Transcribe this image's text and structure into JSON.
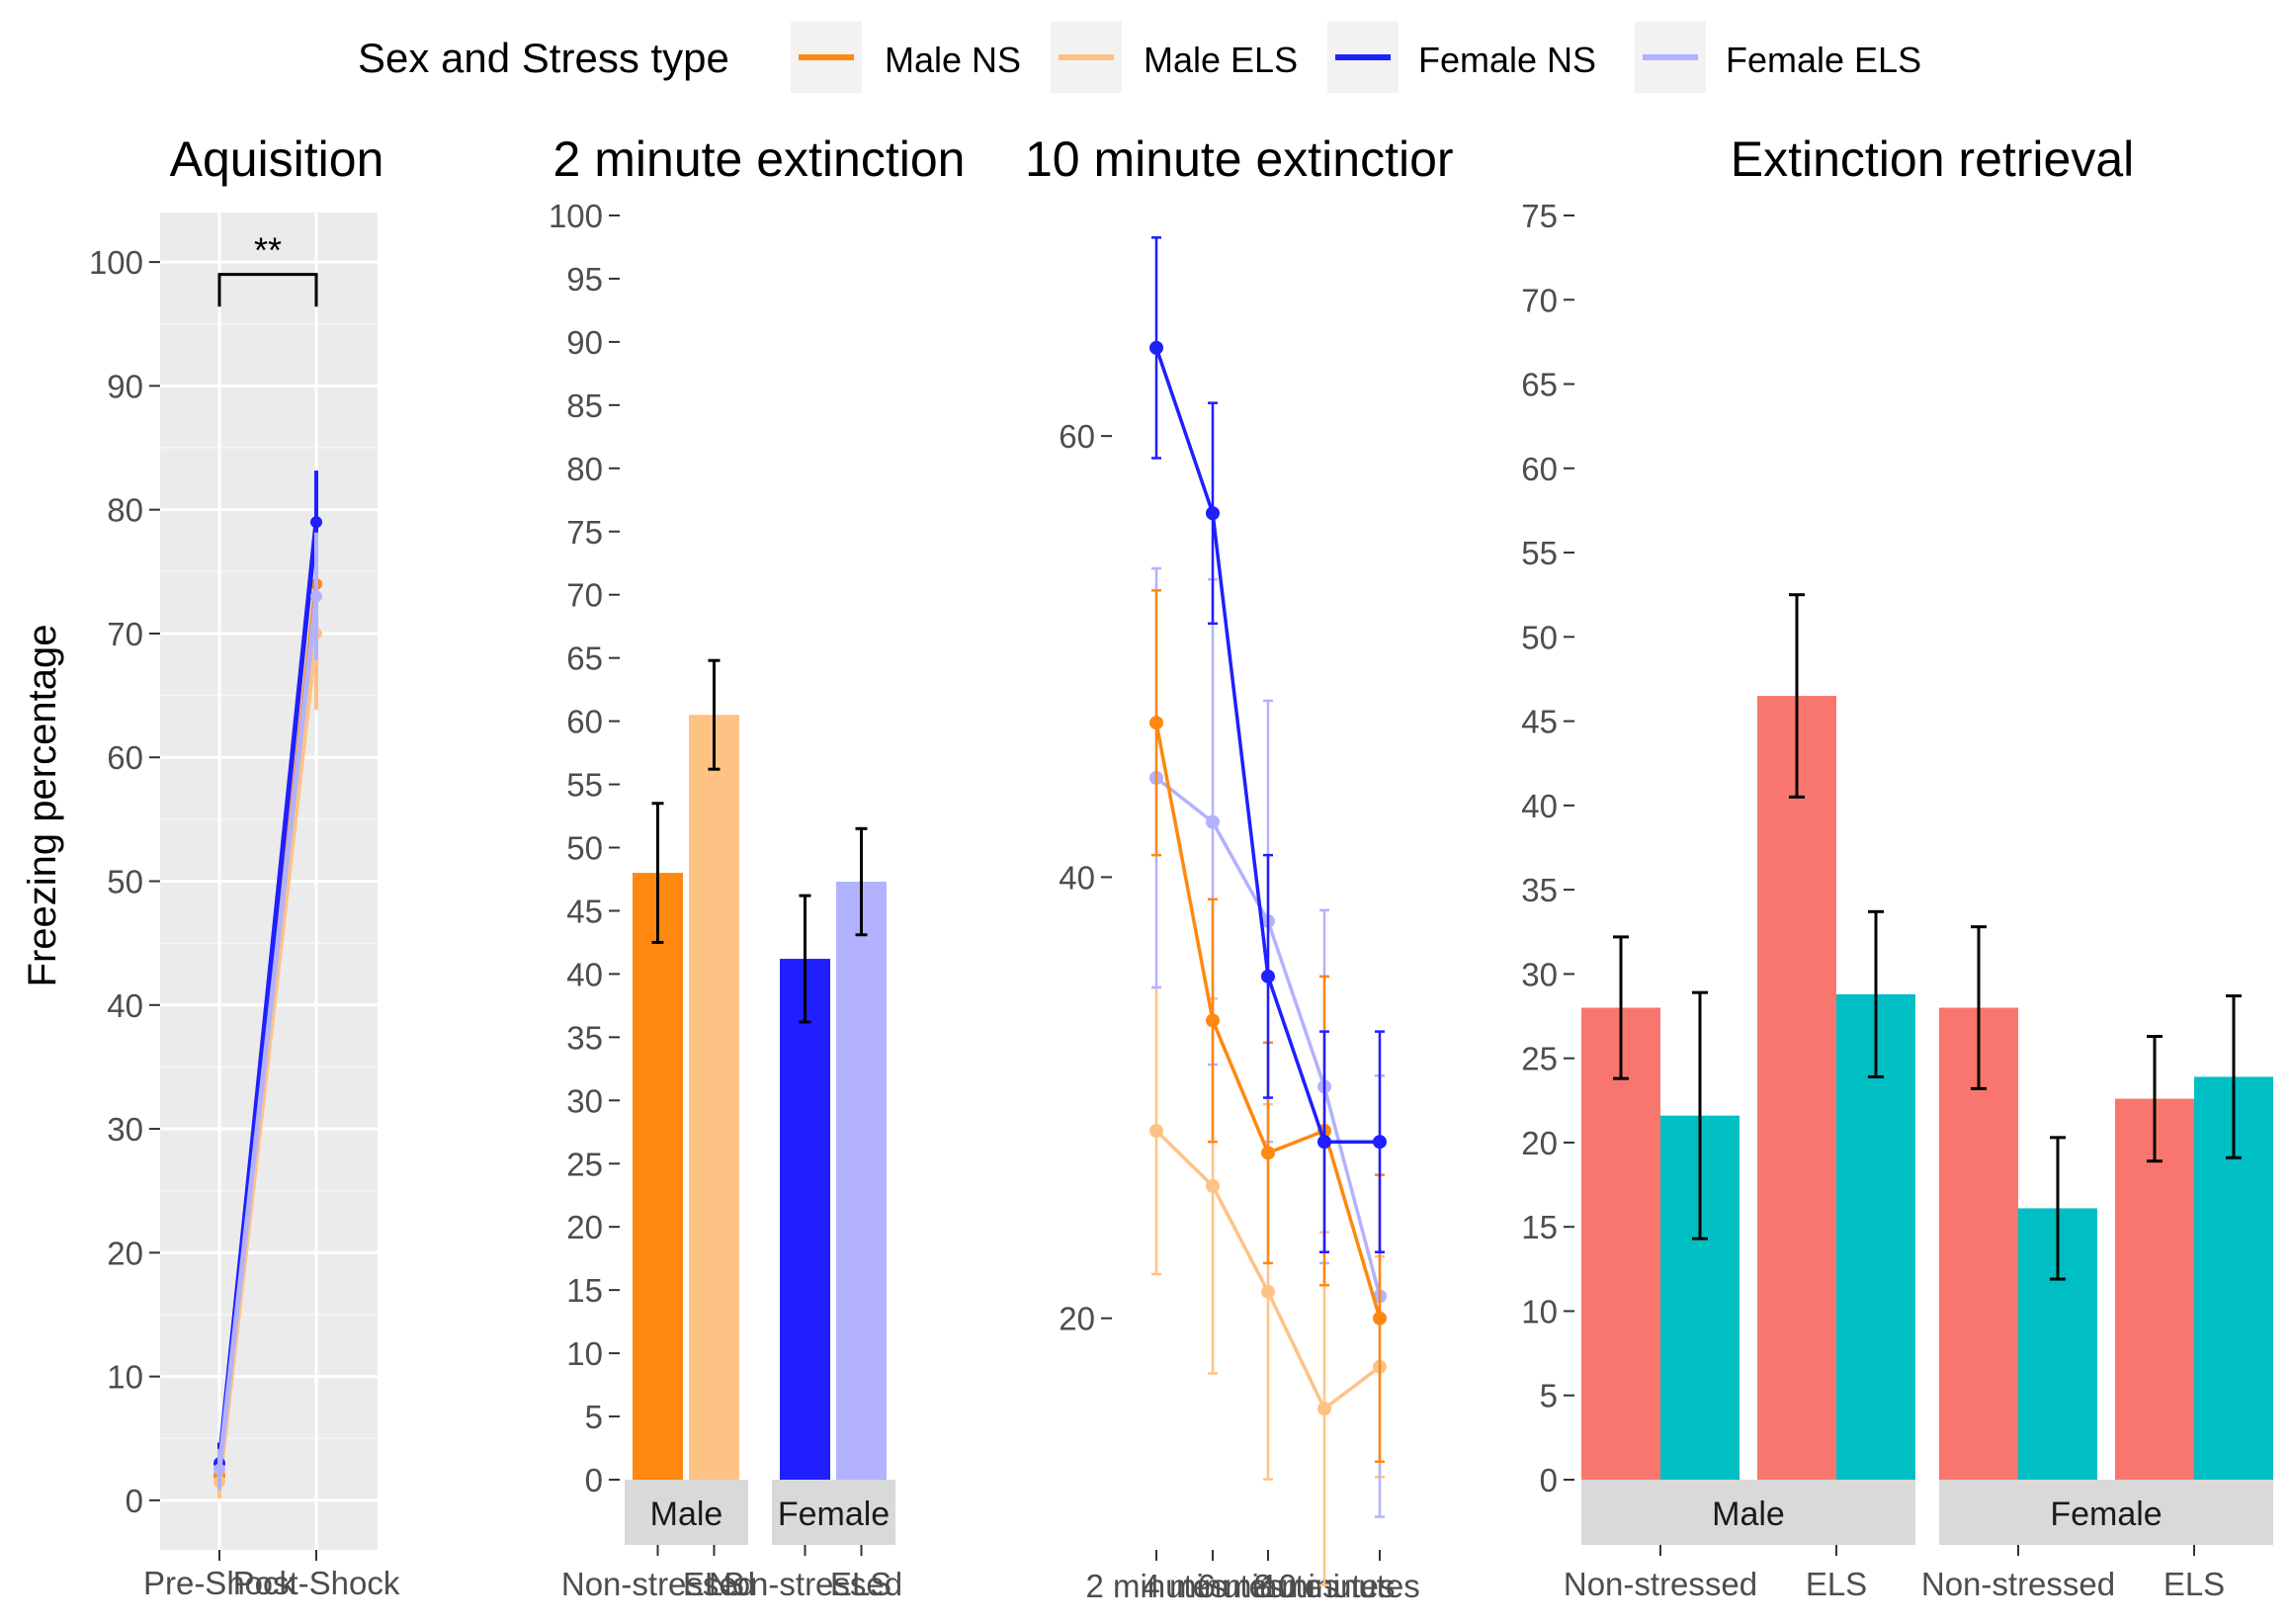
{
  "legend": {
    "title": "Sex and Stress type",
    "items": [
      {
        "label": "Male NS",
        "color": "#FF8810"
      },
      {
        "label": "Male ELS",
        "color": "#FFC285"
      },
      {
        "label": "Female NS",
        "color": "#1F1FFF"
      },
      {
        "label": "Female ELS",
        "color": "#B2B2FF"
      }
    ]
  },
  "y_axis_label": "Freezing percentage",
  "chart_data": [
    {
      "type": "line",
      "title": "Aquisition",
      "categories": [
        "Pre-Shock",
        "Post-Shock"
      ],
      "ylim": [
        -4,
        104
      ],
      "yticks": [
        0,
        10,
        20,
        30,
        40,
        50,
        60,
        70,
        80,
        90,
        100
      ],
      "grid": true,
      "significance": {
        "label": "**",
        "from": "Pre-Shock",
        "to": "Post-Shock",
        "y": 99,
        "drop": 2.6
      },
      "series": [
        {
          "name": "Male NS",
          "color": "#FF8810",
          "values": [
            2,
            74
          ],
          "err": [
            1.5,
            5
          ]
        },
        {
          "name": "Male ELS",
          "color": "#FFC285",
          "values": [
            1.5,
            70
          ],
          "err": [
            1.2,
            6
          ]
        },
        {
          "name": "Female NS",
          "color": "#1F1FFF",
          "values": [
            3,
            79
          ],
          "err": [
            1.5,
            4
          ]
        },
        {
          "name": "Female ELS",
          "color": "#B2B2FF",
          "values": [
            2.5,
            73
          ],
          "err": [
            1.5,
            5
          ]
        }
      ]
    },
    {
      "type": "bar",
      "title": "2 minute extinction",
      "facets": [
        "Male",
        "Female"
      ],
      "facet_categories": [
        "Non-stressed",
        "ELS"
      ],
      "ylim": [
        0,
        100
      ],
      "yticks": [
        0,
        5,
        10,
        15,
        20,
        25,
        30,
        35,
        40,
        45,
        50,
        55,
        60,
        65,
        70,
        75,
        80,
        85,
        90,
        95,
        100
      ],
      "grid": false,
      "bars": [
        {
          "facet": "Male",
          "category": "Non-stressed",
          "value": 48,
          "err": 5.5,
          "color": "#FF8810"
        },
        {
          "facet": "Male",
          "category": "ELS",
          "value": 60.5,
          "err": 4.3,
          "color": "#FFC285"
        },
        {
          "facet": "Female",
          "category": "Non-stressed",
          "value": 41.2,
          "err": 5,
          "color": "#1F1FFF"
        },
        {
          "facet": "Female",
          "category": "ELS",
          "value": 47.3,
          "err": 4.2,
          "color": "#B2B2FF"
        }
      ]
    },
    {
      "type": "line",
      "title": "10 minute extinctior",
      "categories": [
        "2 minutes",
        "4 minutes",
        "6 minutes",
        "8 minutes",
        "10 minutes"
      ],
      "tick_labels_overlapping": "2 minutes4 minutes6 minutes8 minutes10 minutes",
      "ylim": [
        9.5,
        70
      ],
      "yticks": [
        20,
        40,
        60
      ],
      "grid": false,
      "series": [
        {
          "name": "Male NS",
          "color": "#FF8810",
          "values": [
            47,
            33.5,
            27.5,
            28.5,
            20
          ],
          "err": [
            6,
            5.5,
            5,
            7,
            6.5
          ]
        },
        {
          "name": "Male ELS",
          "color": "#FFC285",
          "values": [
            28.5,
            26,
            21.2,
            15.9,
            17.8
          ],
          "err": [
            6.5,
            8.5,
            8.5,
            8,
            5
          ]
        },
        {
          "name": "Female NS",
          "color": "#1F1FFF",
          "values": [
            64,
            56.5,
            35.5,
            28,
            28
          ],
          "err": [
            5,
            5,
            5.5,
            5,
            5
          ]
        },
        {
          "name": "Female ELS",
          "color": "#B2B2FF",
          "values": [
            44.5,
            42.5,
            38,
            30.5,
            21
          ],
          "err": [
            9.5,
            11,
            10,
            8,
            10
          ]
        }
      ]
    },
    {
      "type": "bar",
      "title": "Extinction retrieval",
      "facets": [
        "Male",
        "Female"
      ],
      "facet_categories": [
        "Non-stressed",
        "ELS"
      ],
      "ylim": [
        0,
        75
      ],
      "yticks": [
        0,
        5,
        10,
        15,
        20,
        25,
        30,
        35,
        40,
        45,
        50,
        55,
        60,
        65,
        70,
        75
      ],
      "grid": false,
      "bars": [
        {
          "facet": "Male",
          "category": "Non-stressed",
          "subgroup": 0,
          "value": 28,
          "err": 4.2,
          "color": "#F8766D"
        },
        {
          "facet": "Male",
          "category": "Non-stressed",
          "subgroup": 1,
          "value": 21.6,
          "err": 7.3,
          "color": "#00BFC4"
        },
        {
          "facet": "Male",
          "category": "ELS",
          "subgroup": 0,
          "value": 46.5,
          "err": 6,
          "color": "#F8766D"
        },
        {
          "facet": "Male",
          "category": "ELS",
          "subgroup": 1,
          "value": 28.8,
          "err": 4.9,
          "color": "#00BFC4"
        },
        {
          "facet": "Female",
          "category": "Non-stressed",
          "subgroup": 0,
          "value": 28,
          "err": 4.8,
          "color": "#F8766D"
        },
        {
          "facet": "Female",
          "category": "Non-stressed",
          "subgroup": 1,
          "value": 16.1,
          "err": 4.2,
          "color": "#00BFC4"
        },
        {
          "facet": "Female",
          "category": "ELS",
          "subgroup": 0,
          "value": 22.6,
          "err": 3.7,
          "color": "#F8766D"
        },
        {
          "facet": "Female",
          "category": "ELS",
          "subgroup": 1,
          "value": 23.9,
          "err": 4.8,
          "color": "#00BFC4"
        }
      ]
    }
  ]
}
